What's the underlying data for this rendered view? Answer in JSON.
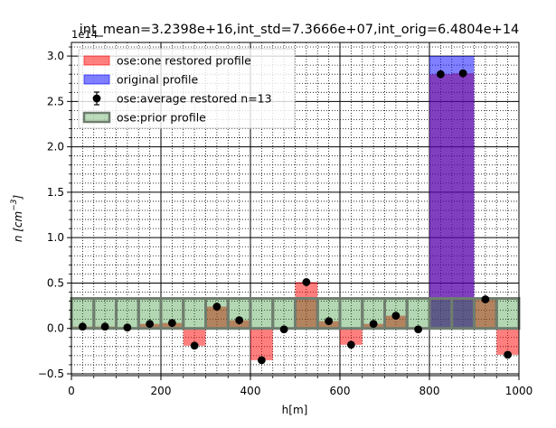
{
  "chart_data": {
    "type": "bar",
    "title": "int_mean=3.2398e+16,int_std=7.3666e+07,int_orig=6.4804e+14",
    "xlabel": "h[m]",
    "ylabel": "n [cm^-3]",
    "y_exponent": "1e14",
    "xlim": [
      0,
      1000
    ],
    "ylim": [
      -0.52,
      3.15
    ],
    "x_ticks": [
      0,
      200,
      400,
      600,
      800,
      1000
    ],
    "x_tick_labels": [
      "0",
      "200",
      "400",
      "600",
      "800",
      "1000"
    ],
    "y_ticks": [
      -0.5,
      0.0,
      0.5,
      1.0,
      1.5,
      2.0,
      2.5,
      3.0
    ],
    "y_tick_labels": [
      "−0.5",
      "0.0",
      "0.5",
      "1.0",
      "1.5",
      "2.0",
      "2.5",
      "3.0"
    ],
    "grid": "major and minor",
    "legend_position": "top-left",
    "bin_width": 50,
    "bin_centers": [
      25,
      75,
      125,
      175,
      225,
      275,
      325,
      375,
      425,
      475,
      525,
      575,
      625,
      675,
      725,
      775,
      825,
      875,
      925,
      975
    ],
    "series": [
      {
        "name": "ose:one restored profile",
        "kind": "bar",
        "color": "#ff0000",
        "values": [
          0.02,
          0.02,
          0.01,
          0.05,
          0.06,
          -0.19,
          0.24,
          0.09,
          -0.35,
          -0.01,
          0.51,
          0.08,
          -0.18,
          0.05,
          0.14,
          -0.01,
          2.8,
          2.81,
          0.32,
          -0.29
        ]
      },
      {
        "name": "original profile",
        "kind": "bar",
        "color": "#0000ff",
        "values": [
          0,
          0,
          0,
          0,
          0,
          0,
          0,
          0,
          0,
          0,
          0,
          0,
          0,
          0,
          0,
          0,
          3.0,
          3.0,
          0,
          0
        ]
      },
      {
        "name": "ose:average restored n=13",
        "kind": "errorbar",
        "color": "#000000",
        "values": [
          0.02,
          0.02,
          0.01,
          0.05,
          0.06,
          -0.19,
          0.24,
          0.09,
          -0.35,
          -0.01,
          0.51,
          0.08,
          -0.18,
          0.05,
          0.14,
          -0.01,
          2.8,
          2.81,
          0.32,
          -0.29
        ]
      },
      {
        "name": "ose:prior profile",
        "kind": "bar",
        "color": "#228b22",
        "values": [
          0.33,
          0.33,
          0.33,
          0.33,
          0.33,
          0.33,
          0.33,
          0.33,
          0.33,
          0.33,
          0.33,
          0.33,
          0.33,
          0.33,
          0.33,
          0.33,
          0.33,
          0.33,
          0.33,
          0.33
        ]
      }
    ]
  }
}
